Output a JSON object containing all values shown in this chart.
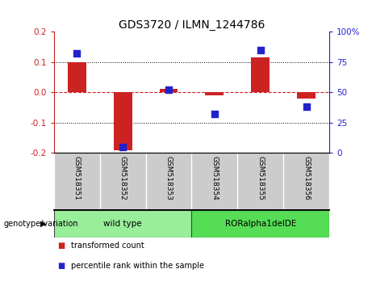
{
  "title": "GDS3720 / ILMN_1244786",
  "samples": [
    "GSM518351",
    "GSM518352",
    "GSM518353",
    "GSM518354",
    "GSM518355",
    "GSM518356"
  ],
  "transformed_counts": [
    0.1,
    -0.19,
    0.01,
    -0.01,
    0.115,
    -0.02
  ],
  "percentile_ranks": [
    82,
    5,
    52,
    32,
    85,
    38
  ],
  "ylim_left": [
    -0.2,
    0.2
  ],
  "ylim_right": [
    0,
    100
  ],
  "yticks_left": [
    -0.2,
    -0.1,
    0.0,
    0.1,
    0.2
  ],
  "yticks_right": [
    0,
    25,
    50,
    75,
    100
  ],
  "ytick_labels_right": [
    "0",
    "25",
    "50",
    "75",
    "100%"
  ],
  "bar_color": "#CC2222",
  "dot_color": "#2222CC",
  "grid_color": "#000000",
  "zero_line_color": "#CC2222",
  "groups": [
    {
      "label": "wild type",
      "indices": [
        0,
        1,
        2
      ],
      "color": "#99EE99"
    },
    {
      "label": "RORalpha1delDE",
      "indices": [
        3,
        4,
        5
      ],
      "color": "#55DD55"
    }
  ],
  "genotype_label": "genotype/variation",
  "legend_items": [
    {
      "label": "transformed count",
      "color": "#CC2222"
    },
    {
      "label": "percentile rank within the sample",
      "color": "#2222CC"
    }
  ],
  "background_plot": "#FFFFFF",
  "sample_label_bg": "#CCCCCC",
  "bar_width": 0.4,
  "dot_size": 30,
  "title_fontsize": 10,
  "tick_fontsize": 7.5,
  "sample_fontsize": 6.5,
  "legend_fontsize": 7,
  "geno_fontsize": 7.5,
  "geno_label_fontsize": 7
}
